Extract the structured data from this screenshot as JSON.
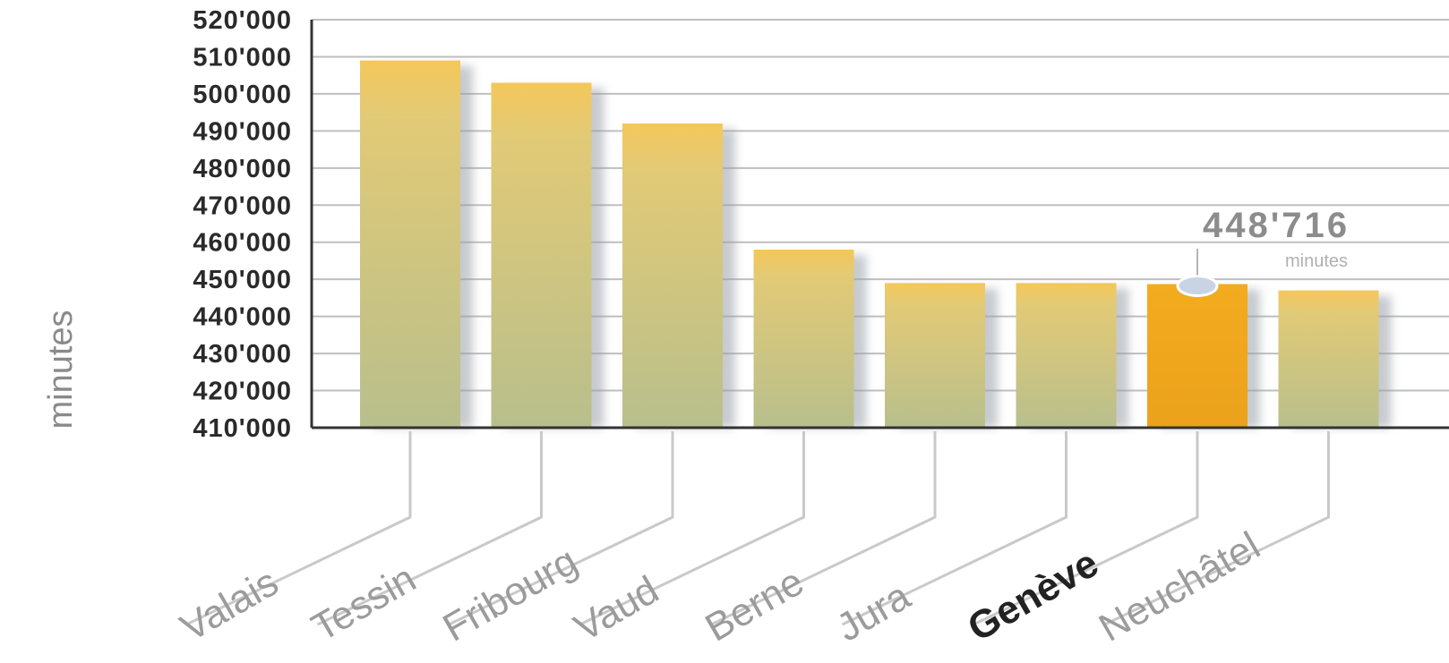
{
  "chart_data": {
    "type": "bar",
    "ylabel": "minutes",
    "ylim": [
      410000,
      520000
    ],
    "yticks": [
      "410'000",
      "420'000",
      "430'000",
      "440'000",
      "450'000",
      "460'000",
      "470'000",
      "480'000",
      "490'000",
      "500'000",
      "510'000",
      "520'000"
    ],
    "categories": [
      "Valais",
      "Tessin",
      "Fribourg",
      "Vaud",
      "Berne",
      "Jura",
      "Genève",
      "Neuchâtel"
    ],
    "values": [
      509000,
      503000,
      492000,
      458000,
      449000,
      449000,
      448716,
      447000
    ],
    "highlight_index": 6,
    "grid": true,
    "colors": {
      "bar": "#d2c87e",
      "bar_top": "#f2c25c",
      "highlight": "#f0a61e",
      "grid": "#bfbfbf",
      "axis": "#333333"
    },
    "callout": {
      "value": "448'716",
      "unit": "minutes"
    }
  }
}
